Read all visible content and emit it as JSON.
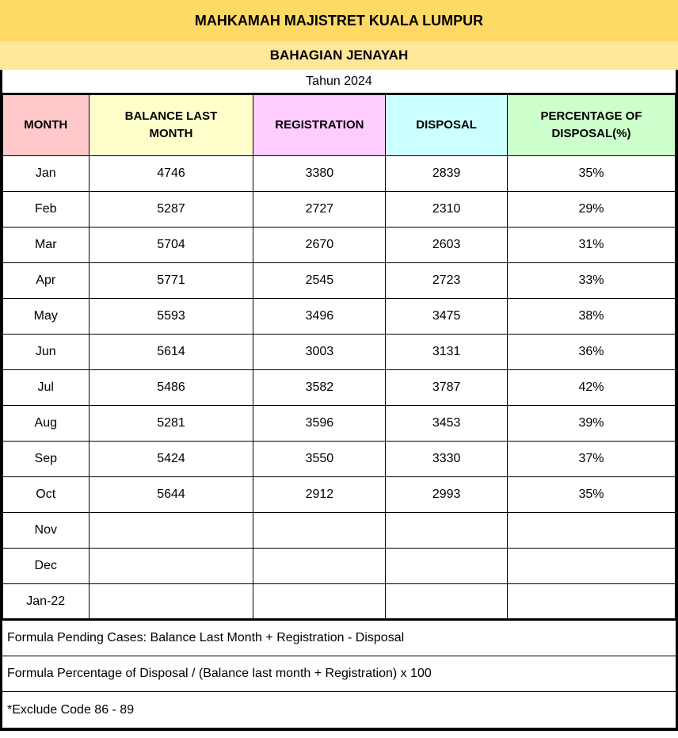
{
  "header": {
    "title": "MAHKAMAH MAJISTRET KUALA LUMPUR",
    "division": "BAHAGIAN JENAYAH",
    "year": "Tahun 2024"
  },
  "colors": {
    "title_band": "#FFD966",
    "division_band": "#FFE699",
    "month_header": "#FFC9CC",
    "balance_header": "#FFFFCC",
    "registration_header": "#FFCCFF",
    "disposal_header": "#CCFFFF",
    "percentage_header": "#CCFFCC",
    "border": "#000000"
  },
  "table": {
    "columns": [
      {
        "key": "month",
        "label": "MONTH",
        "color": "#FFC9CC"
      },
      {
        "key": "balance_last_month",
        "label": "BALANCE LAST MONTH",
        "color": "#FFFFCC"
      },
      {
        "key": "registration",
        "label": "REGISTRATION",
        "color": "#FFCCFF"
      },
      {
        "key": "disposal",
        "label": "DISPOSAL",
        "color": "#CCFFFF"
      },
      {
        "key": "percentage_of_disposal",
        "label": "PERCENTAGE OF DISPOSAL(%)",
        "color": "#CCFFCC"
      }
    ],
    "rows": [
      {
        "month": "Jan",
        "balance_last_month": "4746",
        "registration": "3380",
        "disposal": "2839",
        "percentage_of_disposal": "35%"
      },
      {
        "month": "Feb",
        "balance_last_month": "5287",
        "registration": "2727",
        "disposal": "2310",
        "percentage_of_disposal": "29%"
      },
      {
        "month": "Mar",
        "balance_last_month": "5704",
        "registration": "2670",
        "disposal": "2603",
        "percentage_of_disposal": "31%"
      },
      {
        "month": "Apr",
        "balance_last_month": "5771",
        "registration": "2545",
        "disposal": "2723",
        "percentage_of_disposal": "33%"
      },
      {
        "month": "May",
        "balance_last_month": "5593",
        "registration": "3496",
        "disposal": "3475",
        "percentage_of_disposal": "38%"
      },
      {
        "month": "Jun",
        "balance_last_month": "5614",
        "registration": "3003",
        "disposal": "3131",
        "percentage_of_disposal": "36%"
      },
      {
        "month": "Jul",
        "balance_last_month": "5486",
        "registration": "3582",
        "disposal": "3787",
        "percentage_of_disposal": "42%"
      },
      {
        "month": "Aug",
        "balance_last_month": "5281",
        "registration": "3596",
        "disposal": "3453",
        "percentage_of_disposal": "39%"
      },
      {
        "month": "Sep",
        "balance_last_month": "5424",
        "registration": "3550",
        "disposal": "3330",
        "percentage_of_disposal": "37%"
      },
      {
        "month": "Oct",
        "balance_last_month": "5644",
        "registration": "2912",
        "disposal": "2993",
        "percentage_of_disposal": "35%"
      },
      {
        "month": "Nov",
        "balance_last_month": "",
        "registration": "",
        "disposal": "",
        "percentage_of_disposal": ""
      },
      {
        "month": "Dec",
        "balance_last_month": "",
        "registration": "",
        "disposal": "",
        "percentage_of_disposal": ""
      },
      {
        "month": "Jan-22",
        "balance_last_month": "",
        "registration": "",
        "disposal": "",
        "percentage_of_disposal": ""
      }
    ]
  },
  "footer": {
    "notes": [
      "Formula Pending Cases: Balance Last Month + Registration - Disposal",
      "Formula Percentage of Disposal / (Balance last month + Registration) x 100",
      "*Exclude Code 86 - 89"
    ]
  }
}
